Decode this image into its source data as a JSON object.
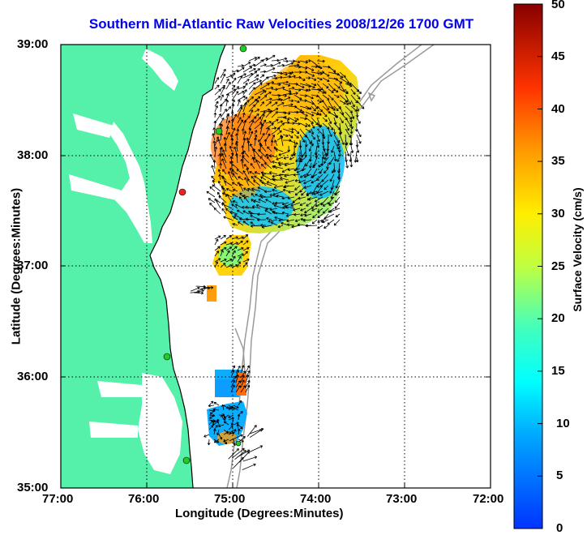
{
  "title": "Southern Mid-Atlantic Raw Velocities 2008/12/26 1700 GMT",
  "axes": {
    "xlabel": "Longitude (Degrees:Minutes)",
    "ylabel": "Latitude (Degrees:Minutes)",
    "x_ticks": [
      "77:00",
      "76:00",
      "75:00",
      "74:00",
      "73:00",
      "72:00"
    ],
    "y_ticks": [
      "39:00",
      "38:00",
      "37:00",
      "36:00",
      "35:00"
    ],
    "x_range_deg_west": [
      77,
      72
    ],
    "y_range_deg_north": [
      35,
      39
    ],
    "grid": "dotted"
  },
  "colorbar": {
    "label": "Surface Velocity (cm/s)",
    "ticks": [
      "0",
      "5",
      "10",
      "15",
      "20",
      "25",
      "30",
      "35",
      "40",
      "45",
      "50"
    ],
    "range": [
      0,
      50
    ],
    "colormap": "jet"
  },
  "colors": {
    "land": "#55f0aa",
    "coast_line": "#000000",
    "bathymetry_contour": "#9a9a9a",
    "title_color": "#0000ee",
    "station_marker": "#22cc22",
    "station_marker_alt": "#ee2222"
  },
  "stations": [
    {
      "lon": 75.1,
      "lat": 38.97,
      "color": "green"
    },
    {
      "lon": 75.1,
      "lat": 38.23,
      "color": "green"
    },
    {
      "lon": 75.5,
      "lat": 37.68,
      "color": "red"
    },
    {
      "lon": 75.7,
      "lat": 36.2,
      "color": "green"
    },
    {
      "lon": 75.5,
      "lat": 35.05,
      "color": "green"
    },
    {
      "lon": 75.1,
      "lat": 35.15,
      "color": "green"
    }
  ]
}
